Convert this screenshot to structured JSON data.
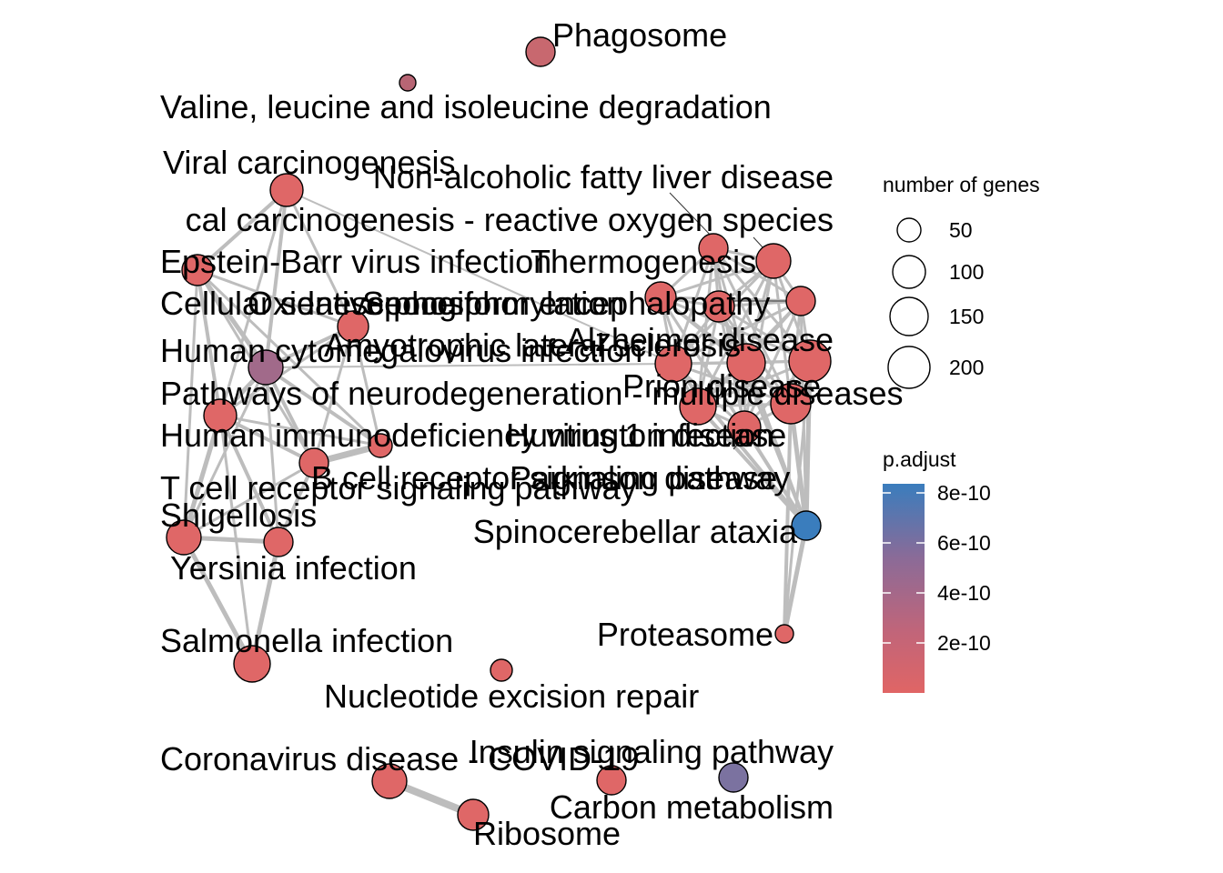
{
  "nodes": [
    {
      "id": "phagosome",
      "label": "Phagosome",
      "color": "#c8686f"
    },
    {
      "id": "valine",
      "label": "Valine, leucine and isoleucine degradation",
      "color": "#b76574"
    },
    {
      "id": "viral_carc",
      "label": "Viral carcinogenesis",
      "color": "#df6767"
    },
    {
      "id": "nafld",
      "label": "Non-alcoholic fatty liver disease",
      "color": "#df6767"
    },
    {
      "id": "chem_carc",
      "label": "cal carcinogenesis - reactive oxygen species",
      "color": "#df6767"
    },
    {
      "id": "ebv",
      "label": "Epstein-Barr virus infection",
      "color": "#df6767"
    },
    {
      "id": "thermo",
      "label": "Thermogenesis",
      "color": "#df6767"
    },
    {
      "id": "senescence",
      "label": "Cellular senescence",
      "color": "#df6767"
    },
    {
      "id": "oxphos",
      "label": "Oxidative phosphorylation",
      "color": "#df6767"
    },
    {
      "id": "prion_enceph",
      "label": "Spongiform encephalopathy",
      "color": "#df6767"
    },
    {
      "id": "hcmv",
      "label": "Human cytomegalovirus infection",
      "color": "#a16a8a"
    },
    {
      "id": "als",
      "label": "Amyotrophic lateral sclerosis",
      "color": "#df6767"
    },
    {
      "id": "alzheimer",
      "label": "Alzheimer disease",
      "color": "#df6767"
    },
    {
      "id": "nd",
      "label": "Pathways of neurodegeneration - multiple diseases",
      "color": "#df6767"
    },
    {
      "id": "prion",
      "label": "Prion disease",
      "color": "#df6767"
    },
    {
      "id": "hiv",
      "label": "Human immunodeficiency virus 1 infection",
      "color": "#df6767"
    },
    {
      "id": "huntington",
      "label": "Huntington disease",
      "color": "#df6767"
    },
    {
      "id": "parkinson",
      "label": "Parkinson disease",
      "color": "#df6767"
    },
    {
      "id": "bcr",
      "label": "B cell receptor signaling pathway",
      "color": "#df6767"
    },
    {
      "id": "tcr",
      "label": "T cell receptor signaling pathway",
      "color": "#df6767"
    },
    {
      "id": "shigella",
      "label": "Shigellosis",
      "color": "#df6767"
    },
    {
      "id": "yersinia",
      "label": "Yersinia infection",
      "color": "#df6767"
    },
    {
      "id": "sca",
      "label": "Spinocerebellar ataxia",
      "color": "#3a7dbd"
    },
    {
      "id": "proteasome",
      "label": "Proteasome",
      "color": "#df6767"
    },
    {
      "id": "salmonella",
      "label": "Salmonella infection",
      "color": "#df6767"
    },
    {
      "id": "ner",
      "label": "Nucleotide excision repair",
      "color": "#df6767"
    },
    {
      "id": "covid",
      "label": "Coronavirus disease - COVID-19",
      "color": "#df6767"
    },
    {
      "id": "insulin",
      "label": "Insulin signaling pathway",
      "color": "#df6767"
    },
    {
      "id": "carbon",
      "label": "Carbon metabolism",
      "color": "#7b72a0"
    },
    {
      "id": "ribosome",
      "label": "Ribosome",
      "color": "#df6767"
    }
  ],
  "legend": {
    "size_title": "number of genes",
    "size_items": [
      "50",
      "100",
      "150",
      "200"
    ],
    "color_title": "p.adjust",
    "color_ticks": [
      "8e-10",
      "6e-10",
      "4e-10",
      "2e-10"
    ],
    "gradient_colors": [
      "#3a7dbd",
      "#8a6b98",
      "#c0657a",
      "#e06565"
    ]
  }
}
